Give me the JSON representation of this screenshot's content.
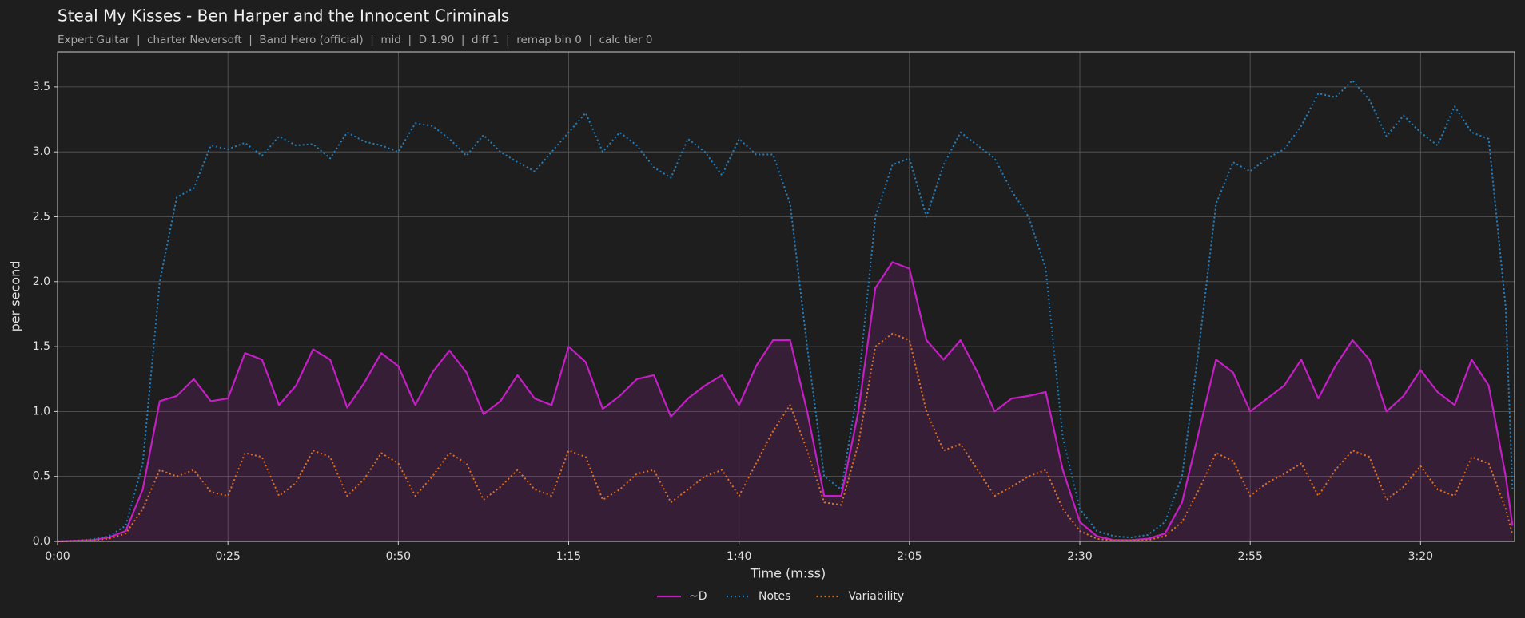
{
  "chart_data": {
    "type": "line",
    "title": "Steal My Kisses - Ben Harper and the Innocent Criminals",
    "subtitle": "Expert Guitar  |  charter Neversoft  |  Band Hero (official)  |  mid  |  D 1.90  |  diff 1  |  remap bin 0  |  calc tier 0",
    "xlabel": "Time (m:ss)",
    "ylabel": "per second",
    "grid": true,
    "legend": "bottom",
    "xlim": [
      0,
      213.8
    ],
    "ylim": [
      0,
      3.77
    ],
    "xticks": [
      {
        "value": 0,
        "label": "0:00"
      },
      {
        "value": 25,
        "label": "0:25"
      },
      {
        "value": 50,
        "label": "0:50"
      },
      {
        "value": 75,
        "label": "1:15"
      },
      {
        "value": 100,
        "label": "1:40"
      },
      {
        "value": 125,
        "label": "2:05"
      },
      {
        "value": 150,
        "label": "2:30"
      },
      {
        "value": 175,
        "label": "2:55"
      },
      {
        "value": 200,
        "label": "3:20"
      }
    ],
    "yticks": [
      {
        "value": 0,
        "label": "0.0"
      },
      0.5,
      {
        "value": 1,
        "label": "1.0"
      },
      1.5,
      {
        "value": 2,
        "label": "2.0"
      },
      2.5,
      {
        "value": 3,
        "label": "3.0"
      },
      3.5
    ],
    "x": [
      0,
      2.5,
      5,
      7.5,
      10,
      12.5,
      15,
      17.5,
      20,
      22.5,
      25,
      27.5,
      30,
      32.5,
      35,
      37.5,
      40,
      42.5,
      45,
      47.5,
      50,
      52.5,
      55,
      57.5,
      60,
      62.5,
      65,
      67.5,
      70,
      72.5,
      75,
      77.5,
      80,
      82.5,
      85,
      87.5,
      90,
      92.5,
      95,
      97.5,
      100,
      102.5,
      105,
      107.5,
      110,
      112.5,
      115,
      117.5,
      120,
      122.5,
      125,
      127.5,
      130,
      132.5,
      135,
      137.5,
      140,
      142.5,
      145,
      147.5,
      150,
      152.5,
      155,
      157.5,
      160,
      162.5,
      165,
      167.5,
      170,
      172.5,
      175,
      177.5,
      180,
      182.5,
      185,
      187.5,
      190,
      192.5,
      195,
      197.5,
      200,
      202.5,
      205,
      207.5,
      210,
      212.5,
      213.5
    ],
    "series": [
      {
        "name": "~D",
        "color": "#c41fc4",
        "linestyle": "solid",
        "fill": true,
        "values": [
          0,
          0.005,
          0.01,
          0.03,
          0.08,
          0.4,
          1.08,
          1.12,
          1.25,
          1.08,
          1.1,
          1.45,
          1.4,
          1.05,
          1.2,
          1.48,
          1.4,
          1.03,
          1.22,
          1.45,
          1.35,
          1.05,
          1.3,
          1.47,
          1.3,
          0.98,
          1.08,
          1.28,
          1.1,
          1.05,
          1.5,
          1.38,
          1.02,
          1.12,
          1.25,
          1.28,
          0.96,
          1.1,
          1.2,
          1.28,
          1.05,
          1.35,
          1.55,
          1.55,
          1.0,
          0.35,
          0.35,
          1.0,
          1.95,
          2.15,
          2.1,
          1.55,
          1.4,
          1.55,
          1.3,
          1.0,
          1.1,
          1.12,
          1.15,
          0.55,
          0.15,
          0.04,
          0.01,
          0.01,
          0.02,
          0.06,
          0.3,
          0.85,
          1.4,
          1.3,
          1.0,
          1.1,
          1.2,
          1.4,
          1.1,
          1.35,
          1.55,
          1.4,
          1.0,
          1.12,
          1.32,
          1.15,
          1.05,
          1.4,
          1.2,
          0.5,
          0.12
        ]
      },
      {
        "name": "Notes",
        "color": "#1f7fc0",
        "linestyle": "dotted",
        "fill": false,
        "values": [
          0,
          0.005,
          0.015,
          0.04,
          0.12,
          0.6,
          2.0,
          2.65,
          2.72,
          3.05,
          3.02,
          3.07,
          2.97,
          3.12,
          3.05,
          3.06,
          2.95,
          3.15,
          3.08,
          3.05,
          3.0,
          3.22,
          3.2,
          3.1,
          2.97,
          3.13,
          3.0,
          2.92,
          2.85,
          3.0,
          3.15,
          3.3,
          3.0,
          3.15,
          3.05,
          2.88,
          2.8,
          3.1,
          3.0,
          2.82,
          3.1,
          2.98,
          2.98,
          2.6,
          1.5,
          0.5,
          0.4,
          1.2,
          2.5,
          2.9,
          2.95,
          2.5,
          2.9,
          3.15,
          3.05,
          2.95,
          2.7,
          2.5,
          2.1,
          0.8,
          0.25,
          0.08,
          0.04,
          0.03,
          0.05,
          0.15,
          0.5,
          1.5,
          2.6,
          2.92,
          2.85,
          2.95,
          3.02,
          3.2,
          3.45,
          3.42,
          3.55,
          3.4,
          3.12,
          3.28,
          3.15,
          3.05,
          3.35,
          3.15,
          3.1,
          1.8,
          0.4
        ]
      },
      {
        "name": "Variability",
        "color": "#e0701f",
        "linestyle": "dotted",
        "fill": false,
        "values": [
          0,
          0.003,
          0.005,
          0.02,
          0.06,
          0.25,
          0.55,
          0.5,
          0.55,
          0.38,
          0.35,
          0.68,
          0.65,
          0.35,
          0.45,
          0.7,
          0.65,
          0.35,
          0.48,
          0.68,
          0.6,
          0.35,
          0.5,
          0.68,
          0.6,
          0.32,
          0.42,
          0.55,
          0.4,
          0.35,
          0.7,
          0.65,
          0.32,
          0.4,
          0.52,
          0.55,
          0.3,
          0.4,
          0.5,
          0.55,
          0.35,
          0.6,
          0.85,
          1.05,
          0.7,
          0.3,
          0.28,
          0.75,
          1.5,
          1.6,
          1.55,
          1.0,
          0.7,
          0.75,
          0.55,
          0.35,
          0.42,
          0.5,
          0.55,
          0.25,
          0.08,
          0.02,
          0.005,
          0.005,
          0.01,
          0.04,
          0.15,
          0.4,
          0.68,
          0.62,
          0.35,
          0.45,
          0.52,
          0.6,
          0.35,
          0.55,
          0.7,
          0.65,
          0.32,
          0.42,
          0.58,
          0.4,
          0.35,
          0.65,
          0.6,
          0.25,
          0.05
        ]
      }
    ]
  }
}
